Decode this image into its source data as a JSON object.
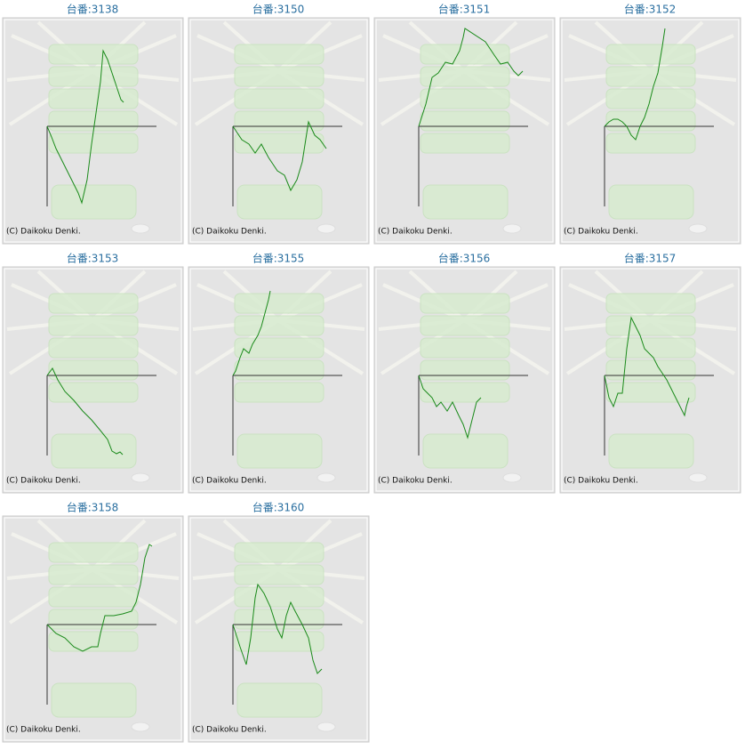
{
  "copyright": "(C) Daikoku Denki.",
  "xlim": [
    0,
    123
  ],
  "ylim": [
    -90,
    100
  ],
  "panels": [
    {
      "title": "台番:3138",
      "x": [
        0,
        5,
        10,
        15,
        20,
        25,
        30,
        35,
        39,
        45,
        50,
        55,
        60,
        63,
        68,
        73,
        78,
        83,
        86
      ],
      "values": [
        0,
        -12,
        -25,
        -35,
        -45,
        -55,
        -65,
        -75,
        -86,
        -60,
        -20,
        15,
        50,
        85,
        75,
        60,
        45,
        30,
        27
      ]
    },
    {
      "title": "台番:3150",
      "x": [
        0,
        10,
        18,
        25,
        32,
        40,
        50,
        58,
        65,
        72,
        78,
        85,
        92,
        98,
        105
      ],
      "values": [
        0,
        -15,
        -20,
        -30,
        -20,
        -35,
        -50,
        -55,
        -72,
        -60,
        -40,
        5,
        -10,
        -15,
        -25
      ]
    },
    {
      "title": "台番:3151",
      "x": [
        0,
        8,
        15,
        22,
        30,
        38,
        46,
        50,
        52,
        75,
        85,
        92,
        100,
        107,
        112,
        117
      ],
      "values": [
        0,
        25,
        55,
        60,
        72,
        70,
        85,
        100,
        110,
        95,
        80,
        70,
        72,
        62,
        57,
        62
      ]
    },
    {
      "title": "台番:3152",
      "x": [
        0,
        5,
        10,
        15,
        20,
        25,
        30,
        35,
        40,
        45,
        50,
        55,
        60,
        65,
        68
      ],
      "values": [
        0,
        5,
        8,
        8,
        5,
        0,
        -10,
        -15,
        0,
        10,
        25,
        45,
        60,
        90,
        110
      ]
    },
    {
      "title": "台番:3153",
      "x": [
        0,
        6,
        12,
        20,
        30,
        40,
        50,
        60,
        68,
        73,
        78,
        82,
        85
      ],
      "values": [
        0,
        8,
        -5,
        -18,
        -28,
        -40,
        -50,
        -62,
        -72,
        -85,
        -88,
        -86,
        -89
      ]
    },
    {
      "title": "台番:3155",
      "x": [
        0,
        3,
        8,
        12,
        18,
        22,
        28,
        32,
        36,
        40,
        42
      ],
      "values": [
        0,
        5,
        20,
        30,
        25,
        35,
        45,
        55,
        70,
        85,
        95
      ]
    },
    {
      "title": "台番:3156",
      "x": [
        0,
        5,
        10,
        15,
        20,
        25,
        32,
        38,
        45,
        50,
        55,
        60,
        65,
        70
      ],
      "values": [
        0,
        -15,
        -20,
        -25,
        -35,
        -30,
        -40,
        -30,
        -45,
        -55,
        -70,
        -50,
        -30,
        -25
      ]
    },
    {
      "title": "台番:3157",
      "x": [
        0,
        5,
        10,
        15,
        20,
        25,
        30,
        35,
        40,
        45,
        55,
        60,
        70,
        80,
        90,
        92,
        95
      ],
      "values": [
        0,
        -25,
        -35,
        -20,
        -20,
        30,
        65,
        55,
        45,
        30,
        20,
        10,
        -5,
        -25,
        -45,
        -35,
        -25
      ]
    },
    {
      "title": "台番:3158",
      "x": [
        0,
        10,
        20,
        30,
        40,
        50,
        57,
        60,
        65,
        75,
        85,
        95,
        100,
        105,
        110,
        115,
        118
      ],
      "values": [
        0,
        -10,
        -15,
        -25,
        -30,
        -25,
        -25,
        -10,
        10,
        10,
        12,
        15,
        25,
        45,
        75,
        90,
        88
      ]
    },
    {
      "title": "台番:3160",
      "x": [
        0,
        8,
        15,
        20,
        25,
        28,
        35,
        42,
        50,
        55,
        60,
        65,
        70,
        78,
        85,
        90,
        95,
        100
      ],
      "values": [
        0,
        -25,
        -45,
        -15,
        30,
        45,
        35,
        20,
        -5,
        -15,
        10,
        25,
        15,
        0,
        -15,
        -40,
        -55,
        -50
      ]
    }
  ]
}
